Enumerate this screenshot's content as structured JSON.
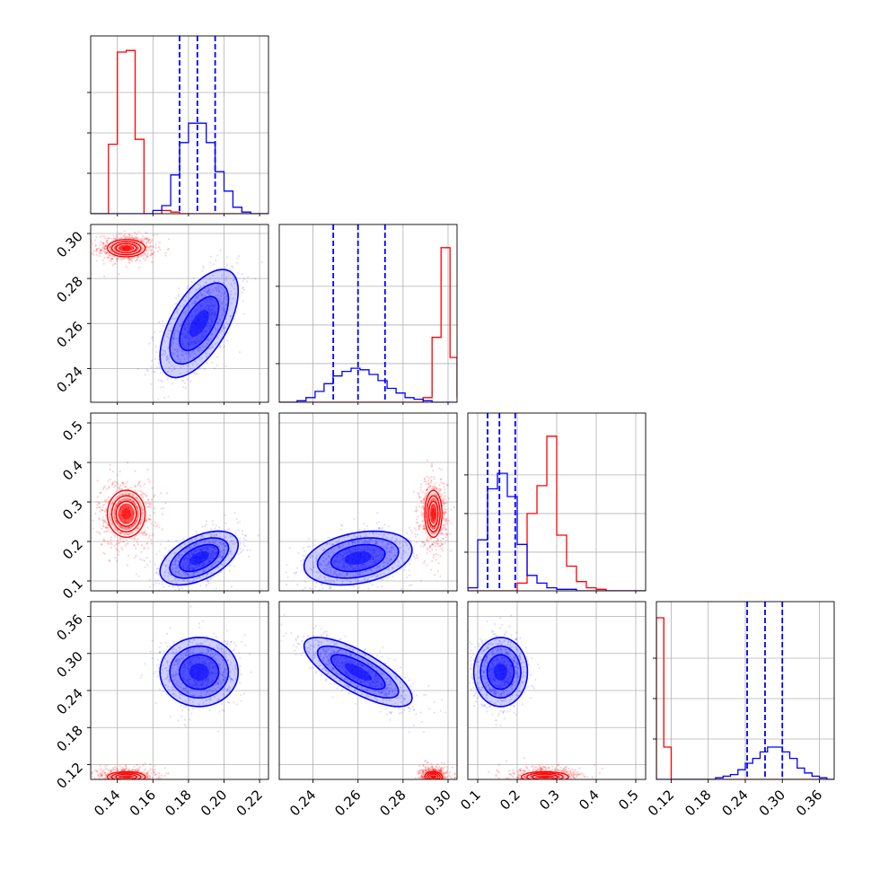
{
  "chart_data": {
    "type": "corner",
    "grid": true,
    "legend": "none",
    "series": [
      {
        "name": "",
        "color": "#ff0000",
        "means": [
          0.145,
          0.2935,
          0.27,
          0.1
        ],
        "sds": [
          0.005,
          0.0018,
          0.028,
          0.004
        ],
        "corr": [
          [
            1,
            0,
            0,
            0
          ],
          [
            0,
            1,
            0,
            0
          ],
          [
            0,
            0,
            1,
            0
          ],
          [
            0,
            0,
            0,
            1
          ]
        ],
        "scatter_spread": [
          0.008,
          0.003,
          0.045,
          0.008
        ]
      },
      {
        "name": "",
        "color": "#0000ff",
        "means": [
          0.186,
          0.26,
          0.158,
          0.27
        ],
        "sds": [
          0.011,
          0.012,
          0.034,
          0.028
        ],
        "corr": [
          [
            1,
            0.6,
            0.5,
            0
          ],
          [
            0.6,
            1,
            0.3,
            -0.75
          ],
          [
            0.5,
            0.3,
            1,
            0
          ],
          [
            0,
            -0.75,
            0,
            1
          ]
        ],
        "quantiles": [
          [
            0.175,
            0.185,
            0.195
          ],
          [
            0.249,
            0.26,
            0.272
          ],
          [
            0.125,
            0.155,
            0.195
          ],
          [
            0.243,
            0.272,
            0.3
          ]
        ]
      }
    ],
    "parameters": [
      {
        "range": [
          0.125,
          0.225
        ],
        "ticks": [
          0.14,
          0.16,
          0.18,
          0.2,
          0.22
        ],
        "tick_labels": [
          "0.14",
          "0.16",
          "0.18",
          "0.20",
          "0.22"
        ]
      },
      {
        "range": [
          0.225,
          0.304
        ],
        "ticks": [
          0.24,
          0.26,
          0.28,
          0.3
        ],
        "tick_labels": [
          "0.24",
          "0.26",
          "0.28",
          "0.30"
        ]
      },
      {
        "range": [
          0.075,
          0.525
        ],
        "ticks": [
          0.1,
          0.2,
          0.3,
          0.4,
          0.5
        ],
        "tick_labels": [
          "0.1",
          "0.2",
          "0.3",
          "0.4",
          "0.5"
        ]
      },
      {
        "range": [
          0.096,
          0.384
        ],
        "ticks": [
          0.12,
          0.18,
          0.24,
          0.3,
          0.36
        ],
        "tick_labels": [
          "0.12",
          "0.18",
          "0.24",
          "0.30",
          "0.36"
        ]
      }
    ],
    "marginal_histograms": [
      {
        "bin_edges": [
          0.125,
          0.13,
          0.135,
          0.14,
          0.145,
          0.15,
          0.155,
          0.16,
          0.165,
          0.17,
          0.175,
          0.18,
          0.185,
          0.19,
          0.195,
          0.2,
          0.205,
          0.21,
          0.215,
          0.22,
          0.225
        ],
        "red": [
          0,
          0,
          0.43,
          1.0,
          1.01,
          0.46,
          0.0,
          0.0,
          0.02,
          0.01,
          0,
          0,
          0,
          0,
          0,
          0,
          0,
          0,
          0,
          0
        ],
        "blue": [
          0,
          0,
          0,
          0,
          0,
          0,
          0,
          0.02,
          0.05,
          0.24,
          0.44,
          0.56,
          0.56,
          0.44,
          0.26,
          0.14,
          0.04,
          0.01,
          0,
          0
        ]
      },
      {
        "bin_edges": [
          0.2249,
          0.2289,
          0.2329,
          0.2369,
          0.2409,
          0.2449,
          0.2489,
          0.2529,
          0.2569,
          0.2609,
          0.2649,
          0.2689,
          0.2729,
          0.2769,
          0.2809,
          0.2849,
          0.2889,
          0.2929,
          0.2969,
          0.3009,
          0.304
        ],
        "red": [
          0,
          0,
          0,
          0,
          0,
          0,
          0,
          0,
          0,
          0,
          0,
          0,
          0,
          0,
          0,
          0,
          0.03,
          0.42,
          1.0,
          0.29,
          0.03
        ],
        "blue": [
          0,
          0,
          0.01,
          0.03,
          0.07,
          0.12,
          0.17,
          0.2,
          0.22,
          0.21,
          0.18,
          0.14,
          0.09,
          0.06,
          0.03,
          0.02,
          0.01,
          0,
          0,
          0,
          0
        ]
      },
      {
        "bin_edges": [
          0.075,
          0.1,
          0.125,
          0.15,
          0.175,
          0.2,
          0.225,
          0.25,
          0.275,
          0.3,
          0.325,
          0.35,
          0.375,
          0.4,
          0.425,
          0.45,
          0.475,
          0.5,
          0.525
        ],
        "red": [
          0,
          0,
          0,
          0,
          0,
          0.05,
          0.5,
          0.68,
          1.0,
          0.36,
          0.16,
          0.06,
          0.02,
          0.01,
          0,
          0,
          0,
          0
        ],
        "blue": [
          0.02,
          0.33,
          0.66,
          0.76,
          0.61,
          0.3,
          0.1,
          0.05,
          0.02,
          0.01,
          0.01,
          0,
          0,
          0,
          0,
          0,
          0,
          0
        ]
      },
      {
        "bin_edges": [
          0.096,
          0.108,
          0.12,
          0.132,
          0.144,
          0.156,
          0.168,
          0.18,
          0.192,
          0.204,
          0.216,
          0.228,
          0.24,
          0.252,
          0.264,
          0.276,
          0.288,
          0.3,
          0.312,
          0.324,
          0.336,
          0.348,
          0.36,
          0.372,
          0.384
        ],
        "red": [
          1.0,
          0.2,
          0.0,
          0,
          0,
          0,
          0,
          0,
          0,
          0,
          0,
          0,
          0,
          0,
          0,
          0,
          0,
          0,
          0,
          0,
          0,
          0,
          0,
          0
        ],
        "blue": [
          0,
          0,
          0,
          0,
          0,
          0,
          0,
          0,
          0.01,
          0.02,
          0.03,
          0.06,
          0.1,
          0.13,
          0.17,
          0.2,
          0.2,
          0.17,
          0.13,
          0.07,
          0.04,
          0.02,
          0.01,
          0
        ]
      }
    ],
    "marginal_ylims": [
      1.1,
      1.15,
      1.15,
      1.1
    ]
  }
}
